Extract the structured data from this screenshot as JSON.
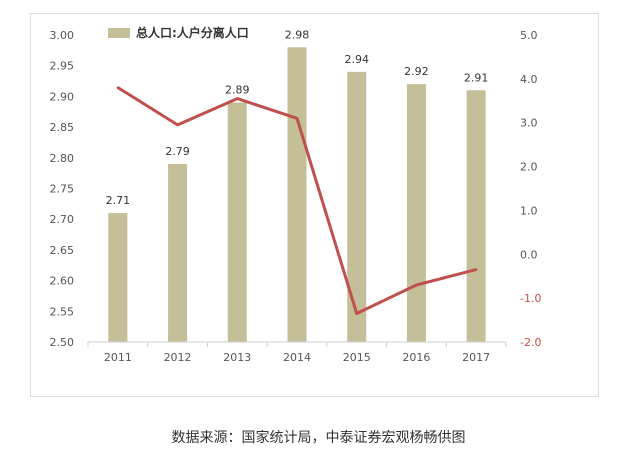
{
  "colors": {
    "bar": "#c5bf99",
    "line": "#c0504d",
    "axis_text": "#555555",
    "negative_tick": "#c0504d",
    "axis_line": "#cfcfcf"
  },
  "chart_data": {
    "type": "bar",
    "title": "",
    "categories": [
      "2011",
      "2012",
      "2013",
      "2014",
      "2015",
      "2016",
      "2017"
    ],
    "series": [
      {
        "name": "总人口:人户分离人口",
        "axis": "left",
        "type": "bar",
        "values": [
          2.71,
          2.79,
          2.89,
          2.98,
          2.94,
          2.92,
          2.91
        ],
        "data_labels": [
          "2.71",
          "2.79",
          "2.89",
          "2.98",
          "2.94",
          "2.92",
          "2.91"
        ]
      },
      {
        "axis": "right",
        "type": "line",
        "values": [
          3.8,
          2.95,
          3.55,
          3.1,
          -1.35,
          -0.7,
          -0.35
        ]
      }
    ],
    "left_axis": {
      "ylim": [
        2.5,
        3.0
      ],
      "ticks": [
        "2.50",
        "2.55",
        "2.60",
        "2.65",
        "2.70",
        "2.75",
        "2.80",
        "2.85",
        "2.90",
        "2.95",
        "3.00"
      ]
    },
    "right_axis": {
      "ylim": [
        -2.0,
        5.0
      ],
      "ticks": [
        "-2.0",
        "-1.0",
        "0.0",
        "1.0",
        "2.0",
        "3.0",
        "4.0",
        "5.0"
      ]
    },
    "grid": false,
    "legend": "top-left"
  },
  "source_note": "数据来源：国家统计局，中泰证券宏观杨畅供图"
}
